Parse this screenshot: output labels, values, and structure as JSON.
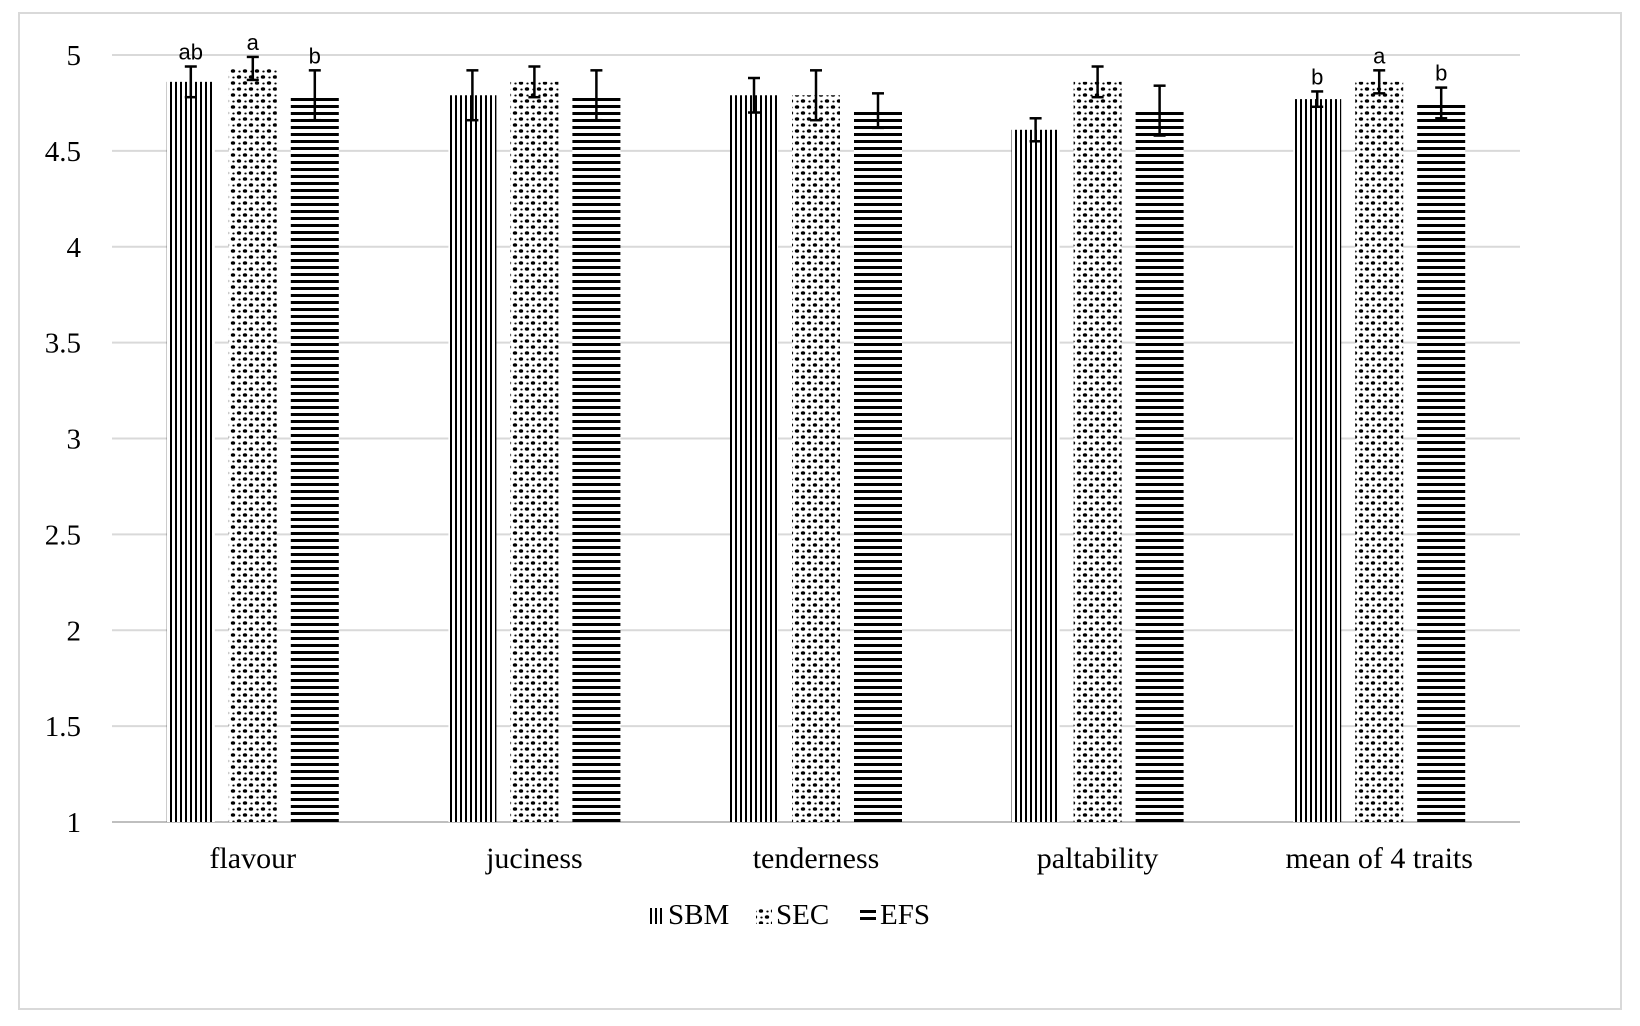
{
  "chart_data": {
    "type": "bar",
    "title": "",
    "xlabel": "",
    "ylabel": "",
    "ylim": [
      1,
      5
    ],
    "yticks": [
      1,
      1.5,
      2,
      2.5,
      3,
      3.5,
      4,
      4.5,
      5
    ],
    "grid": "horizontal",
    "legend_position": "bottom",
    "categories": [
      "flavour",
      "juciness",
      "tenderness",
      "paltability",
      "mean of 4 traits"
    ],
    "series": [
      {
        "name": "SBM",
        "pattern": "vertical-lines",
        "values": [
          4.86,
          4.79,
          4.79,
          4.61,
          4.77
        ],
        "errors": [
          0.08,
          0.13,
          0.09,
          0.06,
          0.04
        ],
        "labels": [
          "ab",
          "",
          "",
          "",
          "b"
        ]
      },
      {
        "name": "SEC",
        "pattern": "dots",
        "values": [
          4.93,
          4.86,
          4.79,
          4.86,
          4.86
        ],
        "errors": [
          0.06,
          0.08,
          0.13,
          0.08,
          0.06
        ],
        "labels": [
          "a",
          "",
          "",
          "",
          "a"
        ]
      },
      {
        "name": "EFS",
        "pattern": "horizontal-lines",
        "values": [
          4.79,
          4.79,
          4.71,
          4.71,
          4.75
        ],
        "errors": [
          0.13,
          0.13,
          0.09,
          0.13,
          0.08
        ],
        "labels": [
          "b",
          "",
          "",
          "",
          "b"
        ]
      }
    ],
    "colors": {
      "bar_stroke": "#000000",
      "grid": "#d9d9d9",
      "axis": "#bfbfbf"
    }
  }
}
